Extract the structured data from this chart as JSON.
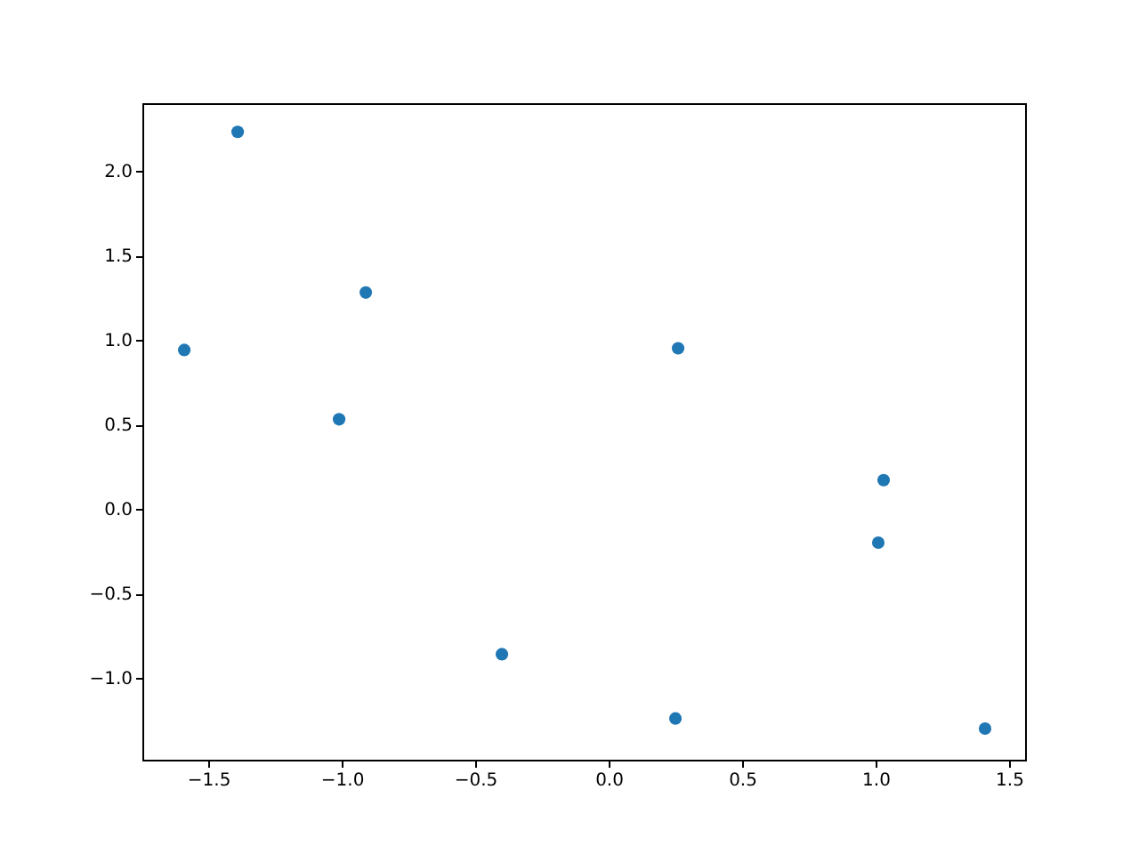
{
  "chart_data": {
    "type": "scatter",
    "x": [
      -1.39,
      -0.91,
      -1.59,
      -1.01,
      0.26,
      1.03,
      1.01,
      -0.4,
      0.25,
      1.41
    ],
    "series": [
      {
        "color": "#1f77b4",
        "values": [
          2.23,
          1.28,
          0.94,
          0.53,
          0.95,
          0.17,
          -0.2,
          -0.86,
          -1.24,
          -1.3
        ]
      }
    ],
    "xlim": [
      -1.747,
      1.56
    ],
    "ylim": [
      -1.484,
      2.4
    ],
    "xticks": [
      {
        "value": -1.5,
        "label": "−1.5"
      },
      {
        "value": -1.0,
        "label": "−1.0"
      },
      {
        "value": -0.5,
        "label": "−0.5"
      },
      {
        "value": 0,
        "label": "0.0"
      },
      {
        "value": 0.5,
        "label": "0.5"
      },
      {
        "value": 1.0,
        "label": "1.0"
      },
      {
        "value": 1.5,
        "label": "1.5"
      }
    ],
    "yticks": [
      {
        "value": -1.0,
        "label": "−1.0"
      },
      {
        "value": -0.5,
        "label": "−0.5"
      },
      {
        "value": 0,
        "label": "0.0"
      },
      {
        "value": 0.5,
        "label": "0.5"
      },
      {
        "value": 1.0,
        "label": "1.0"
      },
      {
        "value": 1.5,
        "label": "1.5"
      },
      {
        "value": 2.0,
        "label": "2.0"
      }
    ],
    "marker": "circle",
    "grid": false
  }
}
